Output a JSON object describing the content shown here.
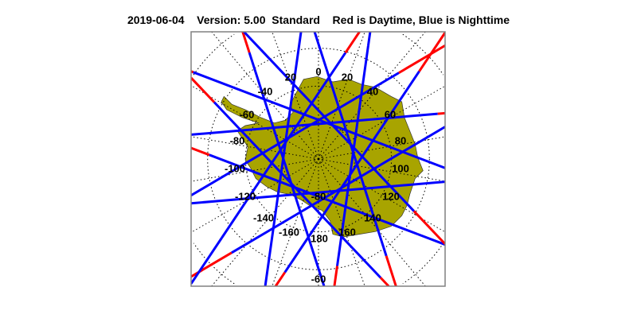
{
  "header": {
    "date": "2019-06-04",
    "version": "Version: 5.00",
    "product": "Standard",
    "legend": "Red is Daytime, Blue is Nighttime"
  },
  "map": {
    "projection": "south polar stereographic",
    "region": "Antarctica",
    "colors": {
      "land": "#a8a400",
      "day_track": "#ff0000",
      "night_track": "#0000ff",
      "grid": "#000000",
      "frame": "#808080"
    },
    "longitude_labels": [
      "20",
      "0",
      "20",
      "40",
      "60",
      "80",
      "100",
      "120",
      "140",
      "160",
      "180",
      "-160",
      "-140",
      "-120",
      "-100",
      "-80",
      "-60",
      "-40"
    ],
    "latitude_labels": [
      "-80",
      "-60"
    ]
  }
}
